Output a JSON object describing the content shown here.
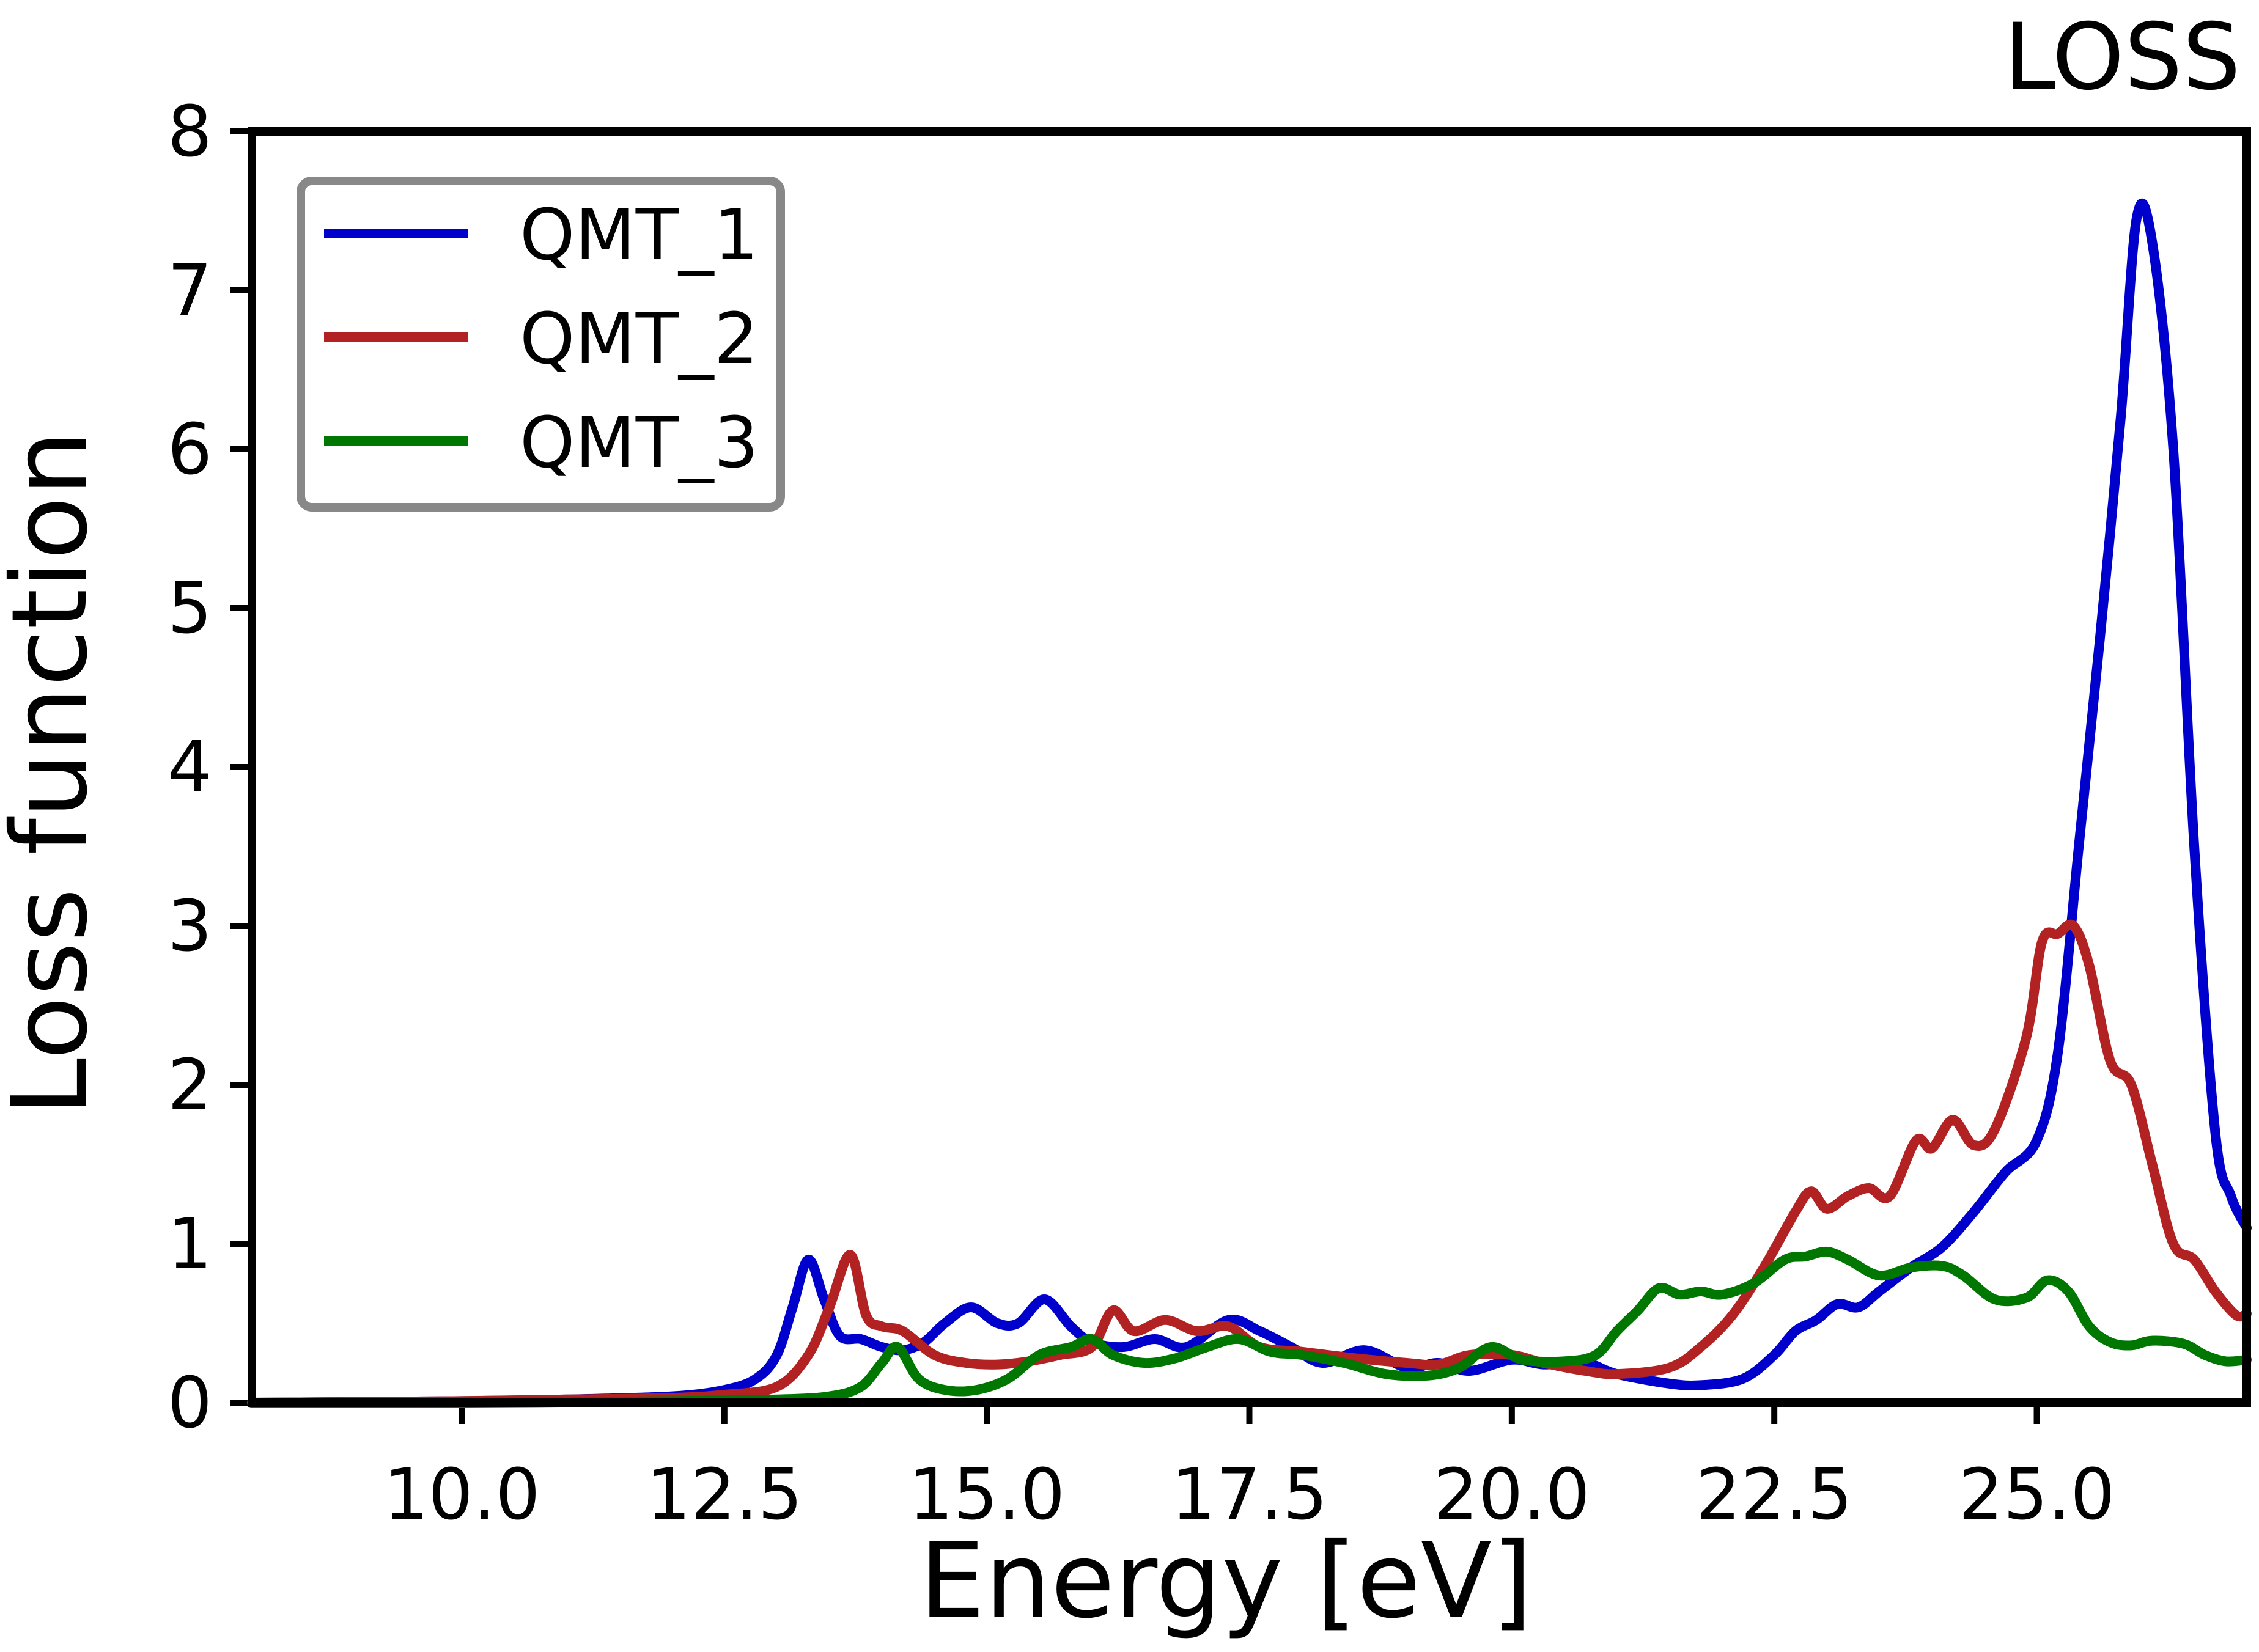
{
  "chart_data": {
    "type": "line",
    "title": "LOSS",
    "xlabel": "Energy [eV]",
    "ylabel": "Loss function",
    "xlim": [
      8.0,
      27.0
    ],
    "ylim": [
      0,
      8
    ],
    "xticks": [
      10.0,
      12.5,
      15.0,
      17.5,
      20.0,
      22.5,
      25.0
    ],
    "xtick_labels": [
      "10.0",
      "12.5",
      "15.0",
      "17.5",
      "20.0",
      "22.5",
      "25.0"
    ],
    "yticks": [
      0,
      1,
      2,
      3,
      4,
      5,
      6,
      7,
      8
    ],
    "ytick_labels": [
      "0",
      "1",
      "2",
      "3",
      "4",
      "5",
      "6",
      "7",
      "8"
    ],
    "grid": false,
    "legend_position": "top-left",
    "series": [
      {
        "name": "QMT_1",
        "color": "#0000cc",
        "points": [
          [
            8.0,
            0.0
          ],
          [
            10.0,
            0.01
          ],
          [
            11.0,
            0.02
          ],
          [
            12.0,
            0.04
          ],
          [
            12.5,
            0.08
          ],
          [
            12.8,
            0.15
          ],
          [
            13.0,
            0.3
          ],
          [
            13.15,
            0.6
          ],
          [
            13.3,
            0.9
          ],
          [
            13.45,
            0.65
          ],
          [
            13.6,
            0.42
          ],
          [
            13.8,
            0.4
          ],
          [
            14.0,
            0.35
          ],
          [
            14.2,
            0.33
          ],
          [
            14.4,
            0.38
          ],
          [
            14.6,
            0.5
          ],
          [
            14.85,
            0.6
          ],
          [
            15.1,
            0.5
          ],
          [
            15.3,
            0.5
          ],
          [
            15.55,
            0.65
          ],
          [
            15.8,
            0.48
          ],
          [
            16.0,
            0.38
          ],
          [
            16.3,
            0.35
          ],
          [
            16.6,
            0.4
          ],
          [
            16.9,
            0.35
          ],
          [
            17.3,
            0.52
          ],
          [
            17.6,
            0.45
          ],
          [
            17.9,
            0.35
          ],
          [
            18.2,
            0.25
          ],
          [
            18.6,
            0.33
          ],
          [
            19.0,
            0.22
          ],
          [
            19.3,
            0.25
          ],
          [
            19.6,
            0.2
          ],
          [
            20.0,
            0.27
          ],
          [
            20.3,
            0.24
          ],
          [
            20.7,
            0.25
          ],
          [
            21.0,
            0.18
          ],
          [
            21.5,
            0.12
          ],
          [
            21.8,
            0.11
          ],
          [
            22.2,
            0.15
          ],
          [
            22.5,
            0.3
          ],
          [
            22.7,
            0.45
          ],
          [
            22.9,
            0.52
          ],
          [
            23.1,
            0.62
          ],
          [
            23.3,
            0.6
          ],
          [
            23.5,
            0.7
          ],
          [
            23.8,
            0.85
          ],
          [
            24.1,
            0.98
          ],
          [
            24.4,
            1.2
          ],
          [
            24.7,
            1.45
          ],
          [
            25.0,
            1.65
          ],
          [
            25.2,
            2.2
          ],
          [
            25.4,
            3.5
          ],
          [
            25.6,
            4.8
          ],
          [
            25.8,
            6.2
          ],
          [
            25.95,
            7.45
          ],
          [
            26.1,
            7.3
          ],
          [
            26.3,
            6.0
          ],
          [
            26.5,
            3.5
          ],
          [
            26.7,
            1.7
          ],
          [
            26.85,
            1.3
          ],
          [
            27.0,
            1.1
          ]
        ]
      },
      {
        "name": "QMT_2",
        "color": "#b22222",
        "points": [
          [
            8.0,
            0.0
          ],
          [
            10.0,
            0.01
          ],
          [
            11.0,
            0.02
          ],
          [
            12.0,
            0.03
          ],
          [
            12.5,
            0.05
          ],
          [
            13.0,
            0.1
          ],
          [
            13.3,
            0.3
          ],
          [
            13.5,
            0.6
          ],
          [
            13.7,
            0.93
          ],
          [
            13.85,
            0.55
          ],
          [
            14.0,
            0.48
          ],
          [
            14.2,
            0.45
          ],
          [
            14.5,
            0.3
          ],
          [
            14.8,
            0.25
          ],
          [
            15.1,
            0.24
          ],
          [
            15.4,
            0.26
          ],
          [
            15.7,
            0.3
          ],
          [
            16.0,
            0.35
          ],
          [
            16.2,
            0.58
          ],
          [
            16.4,
            0.45
          ],
          [
            16.7,
            0.52
          ],
          [
            17.0,
            0.45
          ],
          [
            17.3,
            0.48
          ],
          [
            17.6,
            0.35
          ],
          [
            18.0,
            0.32
          ],
          [
            18.5,
            0.28
          ],
          [
            19.0,
            0.25
          ],
          [
            19.3,
            0.24
          ],
          [
            19.6,
            0.3
          ],
          [
            20.0,
            0.3
          ],
          [
            20.3,
            0.25
          ],
          [
            20.7,
            0.2
          ],
          [
            21.0,
            0.18
          ],
          [
            21.5,
            0.22
          ],
          [
            21.8,
            0.35
          ],
          [
            22.1,
            0.55
          ],
          [
            22.4,
            0.85
          ],
          [
            22.7,
            1.2
          ],
          [
            22.85,
            1.33
          ],
          [
            23.0,
            1.22
          ],
          [
            23.2,
            1.3
          ],
          [
            23.4,
            1.35
          ],
          [
            23.6,
            1.3
          ],
          [
            23.85,
            1.65
          ],
          [
            24.0,
            1.6
          ],
          [
            24.2,
            1.78
          ],
          [
            24.4,
            1.62
          ],
          [
            24.6,
            1.72
          ],
          [
            24.9,
            2.3
          ],
          [
            25.05,
            2.9
          ],
          [
            25.2,
            2.95
          ],
          [
            25.35,
            3.0
          ],
          [
            25.5,
            2.75
          ],
          [
            25.7,
            2.15
          ],
          [
            25.9,
            2.0
          ],
          [
            26.1,
            1.5
          ],
          [
            26.3,
            1.0
          ],
          [
            26.5,
            0.9
          ],
          [
            26.7,
            0.7
          ],
          [
            26.9,
            0.55
          ],
          [
            27.0,
            0.56
          ]
        ]
      },
      {
        "name": "QMT_3",
        "color": "#007700",
        "points": [
          [
            8.0,
            0.0
          ],
          [
            10.0,
            0.0
          ],
          [
            12.0,
            0.01
          ],
          [
            13.0,
            0.02
          ],
          [
            13.5,
            0.04
          ],
          [
            13.8,
            0.1
          ],
          [
            14.0,
            0.25
          ],
          [
            14.15,
            0.35
          ],
          [
            14.35,
            0.15
          ],
          [
            14.6,
            0.08
          ],
          [
            14.9,
            0.08
          ],
          [
            15.2,
            0.15
          ],
          [
            15.5,
            0.3
          ],
          [
            15.8,
            0.35
          ],
          [
            16.0,
            0.4
          ],
          [
            16.2,
            0.3
          ],
          [
            16.5,
            0.25
          ],
          [
            16.8,
            0.28
          ],
          [
            17.1,
            0.35
          ],
          [
            17.4,
            0.4
          ],
          [
            17.7,
            0.32
          ],
          [
            18.0,
            0.3
          ],
          [
            18.4,
            0.25
          ],
          [
            18.8,
            0.18
          ],
          [
            19.2,
            0.17
          ],
          [
            19.5,
            0.22
          ],
          [
            19.8,
            0.35
          ],
          [
            20.1,
            0.27
          ],
          [
            20.5,
            0.26
          ],
          [
            20.8,
            0.3
          ],
          [
            21.0,
            0.45
          ],
          [
            21.2,
            0.58
          ],
          [
            21.4,
            0.72
          ],
          [
            21.6,
            0.68
          ],
          [
            21.8,
            0.7
          ],
          [
            22.0,
            0.68
          ],
          [
            22.3,
            0.75
          ],
          [
            22.6,
            0.9
          ],
          [
            22.8,
            0.92
          ],
          [
            23.0,
            0.95
          ],
          [
            23.2,
            0.9
          ],
          [
            23.5,
            0.8
          ],
          [
            23.8,
            0.85
          ],
          [
            24.1,
            0.86
          ],
          [
            24.3,
            0.8
          ],
          [
            24.6,
            0.65
          ],
          [
            24.9,
            0.66
          ],
          [
            25.1,
            0.77
          ],
          [
            25.3,
            0.7
          ],
          [
            25.5,
            0.48
          ],
          [
            25.7,
            0.38
          ],
          [
            25.9,
            0.36
          ],
          [
            26.1,
            0.39
          ],
          [
            26.4,
            0.37
          ],
          [
            26.6,
            0.3
          ],
          [
            26.8,
            0.26
          ],
          [
            27.0,
            0.27
          ]
        ]
      }
    ]
  }
}
